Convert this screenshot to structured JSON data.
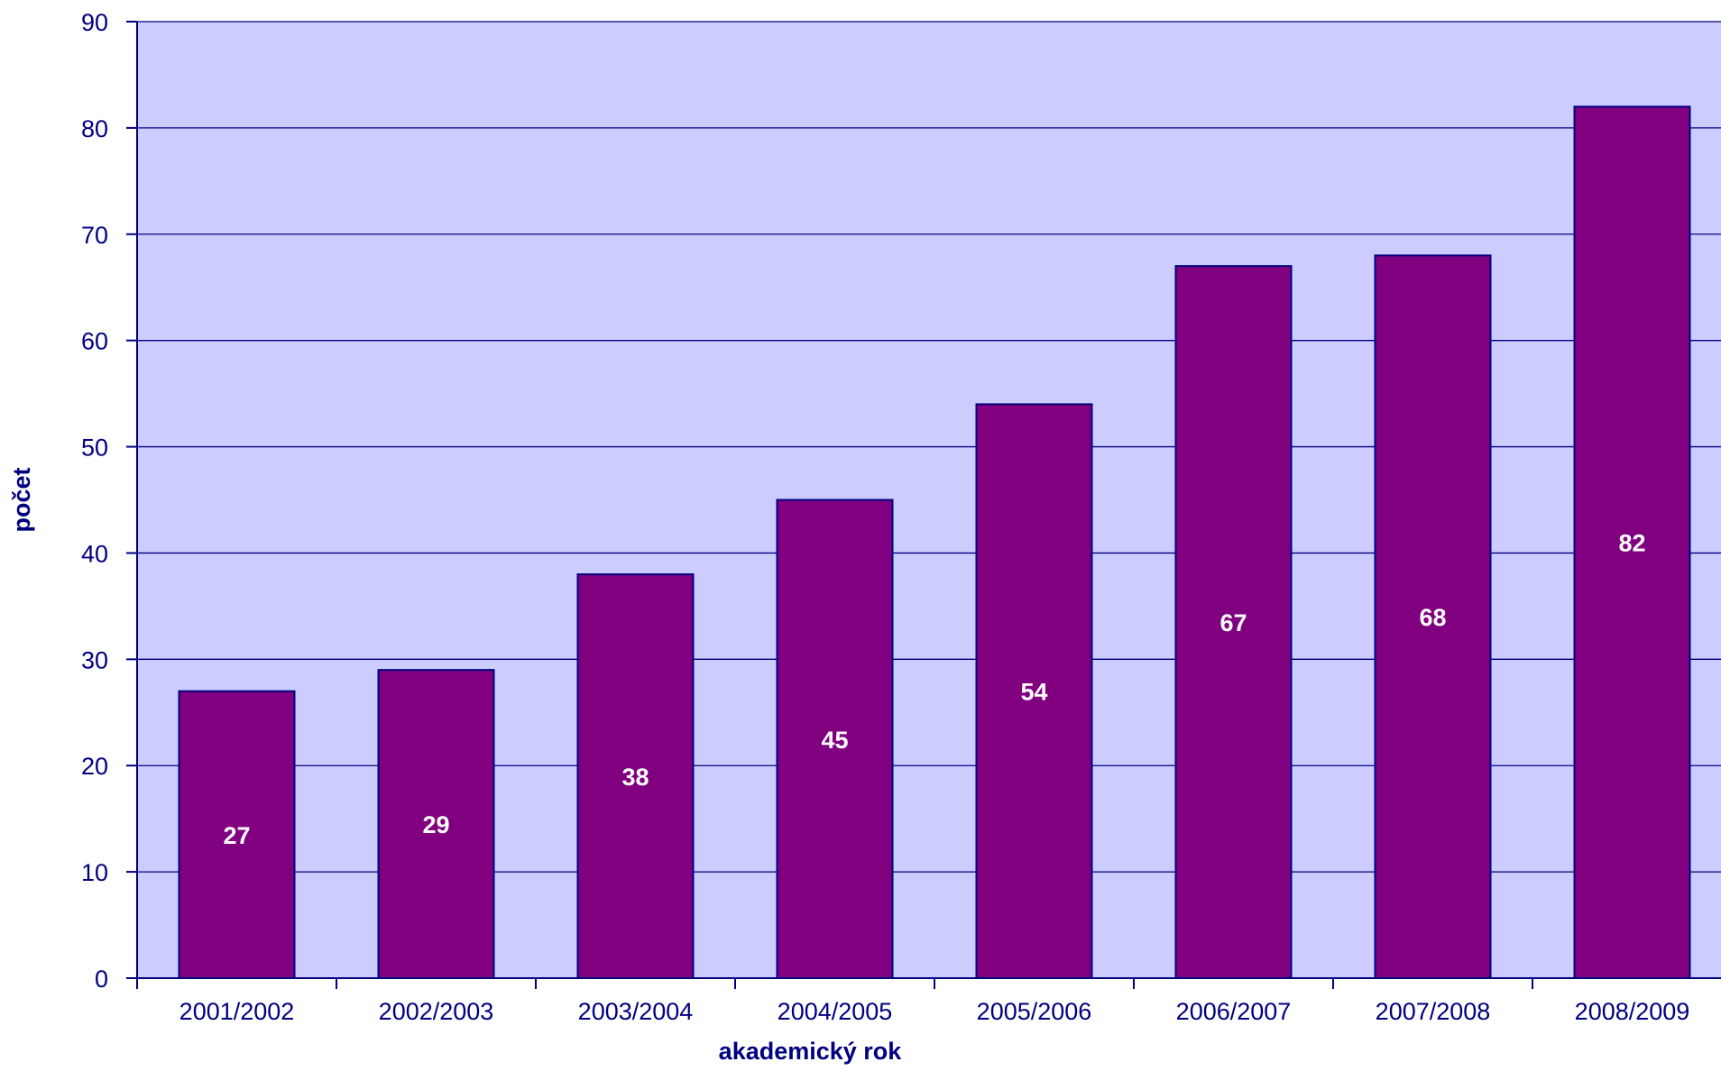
{
  "colors": {
    "plot_background": "#ccccff",
    "bar_fill": "#800080",
    "bar_stroke": "#000080",
    "gridline": "#000080",
    "axis": "#000080",
    "text": "#000080",
    "bar_label_text": "#ffffff"
  },
  "chart_data": {
    "type": "bar",
    "xlabel": "akademický rok",
    "ylabel": "počet",
    "ylim": [
      0,
      90
    ],
    "yticks": [
      0,
      10,
      20,
      30,
      40,
      50,
      60,
      70,
      80,
      90
    ],
    "ytick_labels": [
      "0",
      "10",
      "20",
      "30",
      "40",
      "50",
      "60",
      "70",
      "80",
      "90"
    ],
    "grid": true,
    "legend": "none",
    "categories": [
      "2001/2002",
      "2002/2003",
      "2003/2004",
      "2004/2005",
      "2005/2006",
      "2006/2007",
      "2007/2008",
      "2008/2009"
    ],
    "values": [
      27,
      29,
      38,
      45,
      54,
      67,
      68,
      82
    ],
    "data_labels": [
      "27",
      "29",
      "38",
      "45",
      "54",
      "67",
      "68",
      "82"
    ]
  }
}
